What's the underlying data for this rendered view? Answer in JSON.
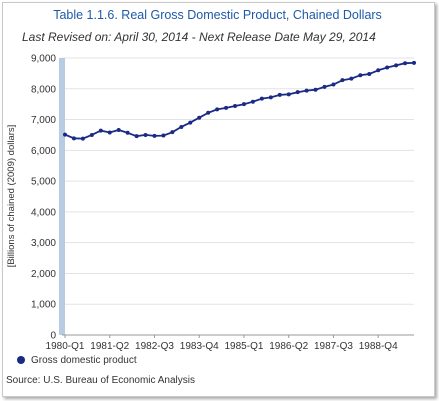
{
  "chart_data": {
    "type": "line",
    "title": "Table 1.1.6. Real Gross Domestic Product, Chained Dollars",
    "subtitle": "Last Revised on: April 30, 2014 - Next Release Date May 29, 2014",
    "ylabel": "[Billions of chained (2009) dollars]",
    "xlabel": "",
    "ylim": [
      0,
      9000
    ],
    "yticks": [
      0,
      1000,
      2000,
      3000,
      4000,
      5000,
      6000,
      7000,
      8000,
      9000
    ],
    "ytick_labels": [
      "0",
      "1,000",
      "2,000",
      "3,000",
      "4,000",
      "5,000",
      "6,000",
      "7,000",
      "8,000",
      "9,000"
    ],
    "xtick_labels": [
      "1980-Q1",
      "1981-Q2",
      "1982-Q3",
      "1983-Q4",
      "1985-Q1",
      "1986-Q2",
      "1987-Q3",
      "1988-Q4"
    ],
    "xtick_indices": [
      0,
      5,
      10,
      15,
      20,
      25,
      30,
      35
    ],
    "grid": true,
    "legend_position": "bottom-left",
    "series": [
      {
        "name": "Gross domestic product",
        "color": "#1a2a85",
        "x": [
          "1980-Q1",
          "1980-Q2",
          "1980-Q3",
          "1980-Q4",
          "1981-Q1",
          "1981-Q2",
          "1981-Q3",
          "1981-Q4",
          "1982-Q1",
          "1982-Q2",
          "1982-Q3",
          "1982-Q4",
          "1983-Q1",
          "1983-Q2",
          "1983-Q3",
          "1983-Q4",
          "1984-Q1",
          "1984-Q2",
          "1984-Q3",
          "1984-Q4",
          "1985-Q1",
          "1985-Q2",
          "1985-Q3",
          "1985-Q4",
          "1986-Q1",
          "1986-Q2",
          "1986-Q3",
          "1986-Q4",
          "1987-Q1",
          "1987-Q2",
          "1987-Q3",
          "1987-Q4",
          "1988-Q1",
          "1988-Q2",
          "1988-Q3",
          "1988-Q4",
          "1989-Q1",
          "1989-Q2",
          "1989-Q3",
          "1989-Q4"
        ],
        "values": [
          6510,
          6390,
          6380,
          6500,
          6640,
          6580,
          6660,
          6570,
          6460,
          6500,
          6470,
          6480,
          6590,
          6760,
          6900,
          7060,
          7220,
          7330,
          7380,
          7440,
          7500,
          7580,
          7680,
          7720,
          7800,
          7820,
          7890,
          7940,
          7970,
          8060,
          8140,
          8280,
          8330,
          8440,
          8480,
          8600,
          8690,
          8760,
          8830,
          8840
        ]
      }
    ]
  },
  "source": "Source: U.S. Bureau of Economic Analysis"
}
